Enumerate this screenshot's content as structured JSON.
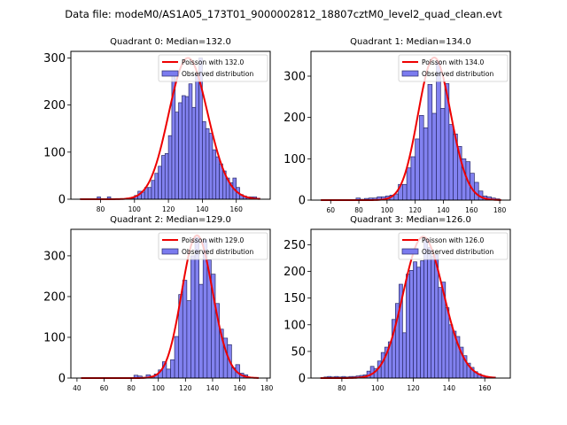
{
  "figure": {
    "suptitle": "Data file: modeM0/AS1A05_173T01_9000002812_18807cztM0_level2_quad_clean.evt"
  },
  "colors": {
    "bar_fill": "#7b7bef",
    "bar_edge": "#2a2a6a",
    "poisson_line": "#ee0000",
    "axes": "#000000"
  },
  "chart_data": [
    {
      "type": "bar",
      "title": "Quadrant 0: Median=132.0",
      "xlabel": "",
      "ylabel": "",
      "xlim": [
        62.5,
        180
      ],
      "ylim": [
        0,
        314
      ],
      "xticks": [
        80,
        100,
        120,
        140,
        160
      ],
      "yticks": [
        0,
        100,
        200,
        300
      ],
      "legend": {
        "position": "top-right",
        "entries": [
          "Poisson with 132.0",
          "Observed distribution"
        ]
      },
      "poisson_mean": 132.0,
      "poisson_peak": 300,
      "poisson_range": [
        68,
        174
      ],
      "bin_width": 2,
      "bins": [
        68,
        70,
        72,
        74,
        76,
        78,
        80,
        82,
        84,
        86,
        88,
        90,
        92,
        94,
        96,
        98,
        100,
        102,
        104,
        106,
        108,
        110,
        112,
        114,
        116,
        118,
        120,
        122,
        124,
        126,
        128,
        130,
        132,
        134,
        136,
        138,
        140,
        142,
        144,
        146,
        148,
        150,
        152,
        154,
        156,
        158,
        160,
        162,
        164,
        166,
        168,
        170,
        172
      ],
      "values": [
        1,
        0,
        1,
        0,
        1,
        5,
        1,
        0,
        5,
        1,
        0,
        1,
        0,
        1,
        1,
        2,
        8,
        17,
        15,
        25,
        25,
        40,
        55,
        70,
        93,
        97,
        135,
        265,
        185,
        205,
        220,
        218,
        245,
        195,
        265,
        300,
        165,
        150,
        140,
        105,
        90,
        75,
        60,
        45,
        35,
        45,
        25,
        10,
        7,
        5,
        5,
        5,
        2
      ]
    },
    {
      "type": "bar",
      "title": "Quadrant 1: Median=134.0",
      "xlabel": "",
      "ylabel": "",
      "xlim": [
        46,
        187.5
      ],
      "ylim": [
        0,
        360
      ],
      "xticks": [
        60,
        80,
        100,
        120,
        140,
        160,
        180
      ],
      "yticks": [
        0,
        100,
        200,
        300
      ],
      "legend": {
        "position": "top-right",
        "entries": [
          "Poisson with 134.0",
          "Observed distribution"
        ]
      },
      "poisson_mean": 134.0,
      "poisson_peak": 345,
      "poisson_range": [
        53,
        181
      ],
      "bin_width": 3,
      "bins": [
        78,
        81,
        84,
        87,
        90,
        93,
        96,
        99,
        102,
        105,
        108,
        111,
        114,
        117,
        120,
        123,
        126,
        129,
        132,
        135,
        138,
        141,
        144,
        147,
        150,
        153,
        156,
        159,
        162,
        165,
        168,
        171,
        174,
        177
      ],
      "values": [
        5,
        2,
        4,
        5,
        5,
        8,
        8,
        10,
        12,
        15,
        38,
        38,
        78,
        105,
        148,
        205,
        175,
        280,
        210,
        335,
        222,
        282,
        183,
        160,
        130,
        100,
        93,
        65,
        43,
        22,
        10,
        8,
        5,
        3
      ]
    },
    {
      "type": "bar",
      "title": "Quadrant 2: Median=129.0",
      "xlabel": "",
      "ylabel": "",
      "xlim": [
        35.5,
        182.5
      ],
      "ylim": [
        0,
        365
      ],
      "xticks": [
        40,
        60,
        80,
        100,
        120,
        140,
        160,
        180
      ],
      "yticks": [
        0,
        100,
        200,
        300
      ],
      "legend": {
        "position": "top-right",
        "entries": [
          "Poisson with 129.0",
          "Observed distribution"
        ]
      },
      "poisson_mean": 129.0,
      "poisson_peak": 350,
      "poisson_range": [
        43,
        174
      ],
      "bin_width": 3,
      "bins": [
        82,
        85,
        88,
        91,
        94,
        97,
        100,
        103,
        106,
        109,
        112,
        115,
        118,
        121,
        124,
        127,
        130,
        133,
        136,
        139,
        142,
        145,
        148,
        151,
        154,
        157,
        160,
        163
      ],
      "values": [
        7,
        5,
        2,
        8,
        5,
        10,
        20,
        40,
        22,
        45,
        102,
        205,
        240,
        190,
        300,
        345,
        230,
        340,
        290,
        255,
        183,
        120,
        98,
        82,
        25,
        33,
        12,
        8
      ]
    },
    {
      "type": "bar",
      "title": "Quadrant 3: Median=126.0",
      "xlabel": "",
      "ylabel": "",
      "xlim": [
        62.7,
        174.3
      ],
      "ylim": [
        0,
        279
      ],
      "xticks": [
        80,
        100,
        120,
        140,
        160
      ],
      "yticks": [
        0,
        50,
        100,
        150,
        200,
        250
      ],
      "legend": {
        "position": "top-right",
        "entries": [
          "Poisson with 126.0",
          "Observed distribution"
        ]
      },
      "poisson_mean": 126.0,
      "poisson_peak": 265,
      "poisson_range": [
        68,
        166
      ],
      "bin_width": 2,
      "bins": [
        70,
        72,
        74,
        76,
        78,
        80,
        82,
        84,
        86,
        88,
        90,
        92,
        94,
        96,
        98,
        100,
        102,
        104,
        106,
        108,
        110,
        112,
        114,
        116,
        118,
        120,
        122,
        124,
        126,
        128,
        130,
        132,
        134,
        136,
        138,
        140,
        142,
        144,
        146,
        148,
        150,
        152,
        154,
        156,
        158,
        160,
        162,
        164
      ],
      "values": [
        2,
        3,
        2,
        3,
        2,
        3,
        2,
        3,
        3,
        4,
        5,
        6,
        13,
        22,
        18,
        32,
        48,
        58,
        68,
        110,
        140,
        176,
        85,
        195,
        202,
        218,
        208,
        220,
        262,
        245,
        228,
        232,
        170,
        180,
        132,
        100,
        88,
        78,
        58,
        42,
        28,
        20,
        12,
        8,
        5,
        3,
        2,
        2
      ]
    }
  ]
}
